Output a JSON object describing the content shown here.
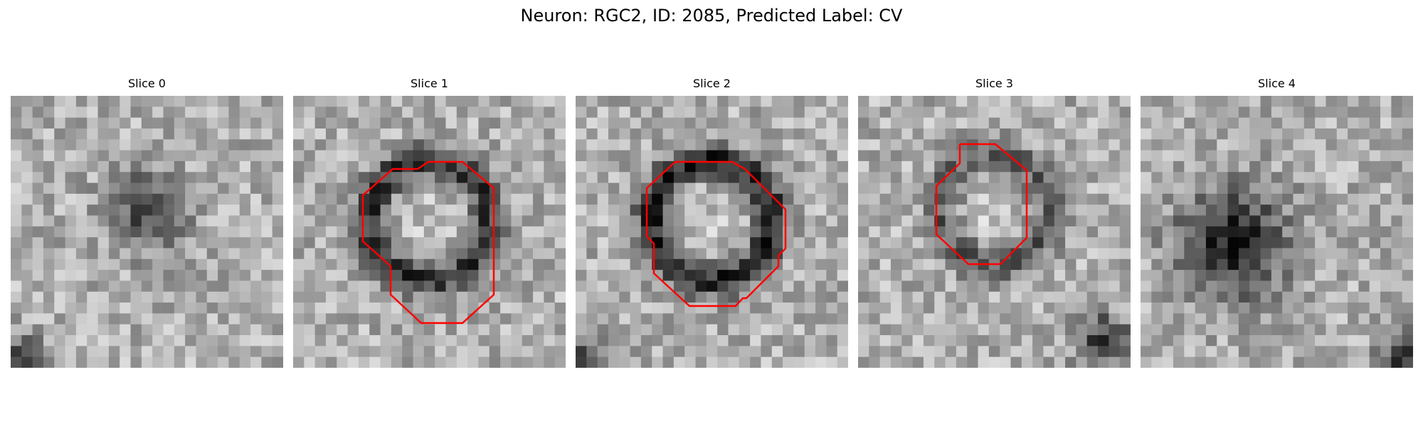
{
  "figure": {
    "title": "Neuron: RGC2, ID: 2085, Predicted Label: CV"
  },
  "slices": [
    {
      "label": "Slice 0",
      "has_contour": false,
      "contour_color": "#ff0000"
    },
    {
      "label": "Slice 1",
      "has_contour": true,
      "contour_color": "#ff0000"
    },
    {
      "label": "Slice 2",
      "has_contour": true,
      "contour_color": "#ff0000"
    },
    {
      "label": "Slice 3",
      "has_contour": true,
      "contour_color": "#ff0000"
    },
    {
      "label": "Slice 4",
      "has_contour": false,
      "contour_color": "#ff0000"
    }
  ]
}
